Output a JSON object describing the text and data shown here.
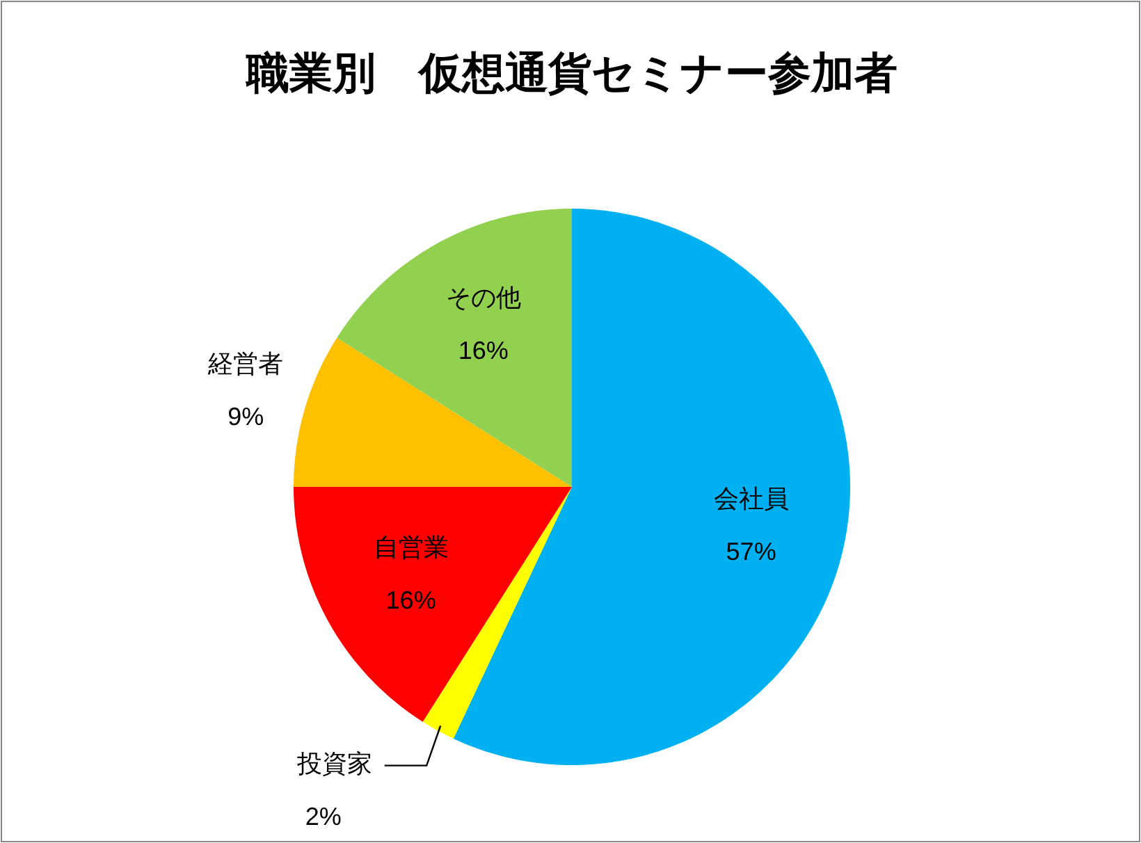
{
  "chart_data": {
    "type": "pie",
    "title": "職業別　仮想通貨セミナー参加者",
    "categories": [
      "会社員",
      "投資家",
      "自営業",
      "経営者",
      "その他"
    ],
    "values": [
      57,
      2,
      16,
      9,
      16
    ],
    "colors": [
      "#00b0f0",
      "#ffff00",
      "#ff0000",
      "#ffc000",
      "#92d050"
    ],
    "value_labels": [
      "57%",
      "2%",
      "16%",
      "9%",
      "16%"
    ]
  }
}
